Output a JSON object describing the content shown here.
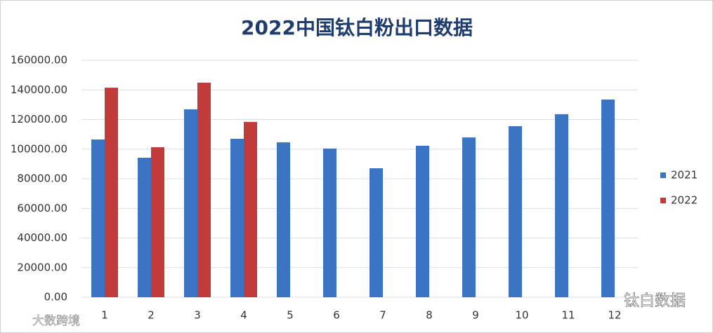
{
  "chart_data": {
    "type": "bar",
    "title": "2022中国钛白粉出口数据",
    "categories": [
      "1",
      "2",
      "3",
      "4",
      "5",
      "6",
      "7",
      "8",
      "9",
      "10",
      "11",
      "12"
    ],
    "series": [
      {
        "name": "2021",
        "color": "#3a74c2",
        "values": [
          106500,
          94200,
          126900,
          107000,
          104600,
          100400,
          87100,
          102300,
          107900,
          115500,
          123600,
          133500
        ]
      },
      {
        "name": "2022",
        "color": "#c23a3a",
        "values": [
          141500,
          101300,
          144900,
          118400,
          null,
          null,
          null,
          null,
          null,
          null,
          null,
          null
        ]
      }
    ],
    "ylim": [
      0,
      160000
    ],
    "yticks": [
      {
        "value": 0,
        "label": "0.00"
      },
      {
        "value": 20000,
        "label": "20000.00"
      },
      {
        "value": 40000,
        "label": "40000.00"
      },
      {
        "value": 60000,
        "label": "60000.00"
      },
      {
        "value": 80000,
        "label": "80000.00"
      },
      {
        "value": 100000,
        "label": "100000.00"
      },
      {
        "value": 120000,
        "label": "120000.00"
      },
      {
        "value": 140000,
        "label": "140000.00"
      },
      {
        "value": 160000,
        "label": "160000.00"
      }
    ],
    "grid": true,
    "legend": "right"
  },
  "watermarks": [
    "钛白数据",
    "大数跨境"
  ]
}
